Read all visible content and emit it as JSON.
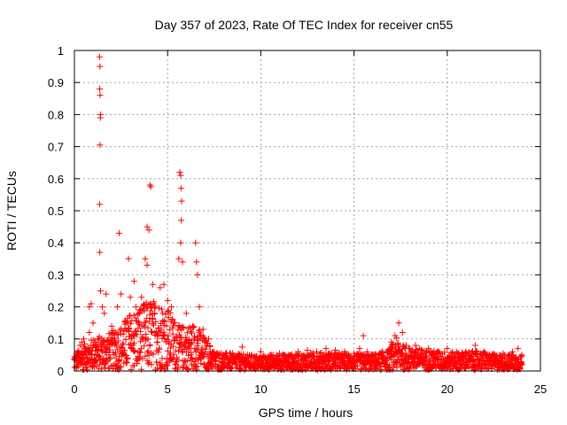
{
  "chart_data": {
    "type": "scatter",
    "title": "Day 357 of 2023, Rate Of TEC Index for receiver cn55",
    "xlabel": "GPS time / hours",
    "ylabel": "ROTI / TECUs",
    "xlim": [
      0,
      25
    ],
    "ylim": [
      0,
      1
    ],
    "grid": true,
    "marker": "+",
    "x_ticks": [
      "0",
      "5",
      "10",
      "15",
      "20",
      "25"
    ],
    "y_ticks": [
      "0",
      "0.1",
      "0.2",
      "0.3",
      "0.4",
      "0.5",
      "0.6",
      "0.7",
      "0.8",
      "0.9",
      "1"
    ],
    "series": [
      {
        "color": "#ff0000",
        "points": [
          [
            0.1,
            0.04
          ],
          [
            0.2,
            0.06
          ],
          [
            0.3,
            0.08
          ],
          [
            0.4,
            0.09
          ],
          [
            0.5,
            0.1
          ],
          [
            0.6,
            0.07
          ],
          [
            0.8,
            0.12
          ],
          [
            0.8,
            0.2
          ],
          [
            0.9,
            0.21
          ],
          [
            1.0,
            0.15
          ],
          [
            1.1,
            0.09
          ],
          [
            1.35,
            0.98
          ],
          [
            1.37,
            0.95
          ],
          [
            1.36,
            0.88
          ],
          [
            1.38,
            0.86
          ],
          [
            1.4,
            0.8
          ],
          [
            1.39,
            0.79
          ],
          [
            1.37,
            0.705
          ],
          [
            1.35,
            0.52
          ],
          [
            1.36,
            0.37
          ],
          [
            1.4,
            0.25
          ],
          [
            1.5,
            0.2
          ],
          [
            1.6,
            0.18
          ],
          [
            1.7,
            0.24
          ],
          [
            2.0,
            0.14
          ],
          [
            2.2,
            0.12
          ],
          [
            2.3,
            0.2
          ],
          [
            2.4,
            0.43
          ],
          [
            2.5,
            0.24
          ],
          [
            2.8,
            0.15
          ],
          [
            2.9,
            0.35
          ],
          [
            3.0,
            0.23
          ],
          [
            3.2,
            0.28
          ],
          [
            3.3,
            0.2
          ],
          [
            3.5,
            0.19
          ],
          [
            3.6,
            0.23
          ],
          [
            3.8,
            0.35
          ],
          [
            3.9,
            0.33
          ],
          [
            3.9,
            0.45
          ],
          [
            4.0,
            0.44
          ],
          [
            4.05,
            0.58
          ],
          [
            4.1,
            0.575
          ],
          [
            4.2,
            0.27
          ],
          [
            4.3,
            0.18
          ],
          [
            4.6,
            0.26
          ],
          [
            4.8,
            0.27
          ],
          [
            5.0,
            0.22
          ],
          [
            5.2,
            0.2
          ],
          [
            5.4,
            0.15
          ],
          [
            5.6,
            0.35
          ],
          [
            5.65,
            0.62
          ],
          [
            5.7,
            0.61
          ],
          [
            5.72,
            0.57
          ],
          [
            5.75,
            0.53
          ],
          [
            5.73,
            0.47
          ],
          [
            5.7,
            0.4
          ],
          [
            5.8,
            0.34
          ],
          [
            6.0,
            0.18
          ],
          [
            6.5,
            0.4
          ],
          [
            6.55,
            0.34
          ],
          [
            6.6,
            0.3
          ],
          [
            6.7,
            0.2
          ],
          [
            6.9,
            0.13
          ],
          [
            7.0,
            0.09
          ],
          [
            7.2,
            0.1
          ],
          [
            7.5,
            0.05
          ],
          [
            8.0,
            0.05
          ],
          [
            8.5,
            0.04
          ],
          [
            9.0,
            0.075
          ],
          [
            9.5,
            0.05
          ],
          [
            10.0,
            0.06
          ],
          [
            10.5,
            0.05
          ],
          [
            11.0,
            0.055
          ],
          [
            11.5,
            0.05
          ],
          [
            12.0,
            0.06
          ],
          [
            12.5,
            0.065
          ],
          [
            13.0,
            0.06
          ],
          [
            13.5,
            0.07
          ],
          [
            14.0,
            0.065
          ],
          [
            14.5,
            0.06
          ],
          [
            15.0,
            0.055
          ],
          [
            15.3,
            0.07
          ],
          [
            15.5,
            0.11
          ],
          [
            15.7,
            0.06
          ],
          [
            16.0,
            0.05
          ],
          [
            16.5,
            0.06
          ],
          [
            17.0,
            0.09
          ],
          [
            17.2,
            0.11
          ],
          [
            17.4,
            0.15
          ],
          [
            17.6,
            0.12
          ],
          [
            17.8,
            0.08
          ],
          [
            18.0,
            0.07
          ],
          [
            18.3,
            0.08
          ],
          [
            18.5,
            0.07
          ],
          [
            19.0,
            0.07
          ],
          [
            19.5,
            0.06
          ],
          [
            20.0,
            0.07
          ],
          [
            20.5,
            0.06
          ],
          [
            21.0,
            0.06
          ],
          [
            21.5,
            0.08
          ],
          [
            22.0,
            0.06
          ],
          [
            22.5,
            0.05
          ],
          [
            23.0,
            0.055
          ],
          [
            23.5,
            0.06
          ],
          [
            23.8,
            0.07
          ],
          [
            24.0,
            0.05
          ]
        ],
        "dense_envelope": [
          [
            0.0,
            0.05
          ],
          [
            0.5,
            0.08
          ],
          [
            1.0,
            0.1
          ],
          [
            1.5,
            0.11
          ],
          [
            2.0,
            0.12
          ],
          [
            2.5,
            0.14
          ],
          [
            3.0,
            0.18
          ],
          [
            3.5,
            0.2
          ],
          [
            4.0,
            0.22
          ],
          [
            4.5,
            0.22
          ],
          [
            5.0,
            0.2
          ],
          [
            5.5,
            0.14
          ],
          [
            6.0,
            0.14
          ],
          [
            6.5,
            0.15
          ],
          [
            7.0,
            0.1
          ],
          [
            7.5,
            0.06
          ],
          [
            8.0,
            0.055
          ],
          [
            9.0,
            0.05
          ],
          [
            10.0,
            0.045
          ],
          [
            11.0,
            0.05
          ],
          [
            12.0,
            0.05
          ],
          [
            13.0,
            0.055
          ],
          [
            14.0,
            0.055
          ],
          [
            15.0,
            0.05
          ],
          [
            16.0,
            0.05
          ],
          [
            16.8,
            0.06
          ],
          [
            17.3,
            0.1
          ],
          [
            17.8,
            0.07
          ],
          [
            18.5,
            0.065
          ],
          [
            19.5,
            0.06
          ],
          [
            20.5,
            0.055
          ],
          [
            21.5,
            0.06
          ],
          [
            22.5,
            0.05
          ],
          [
            23.5,
            0.05
          ],
          [
            24.0,
            0.045
          ]
        ]
      }
    ]
  }
}
